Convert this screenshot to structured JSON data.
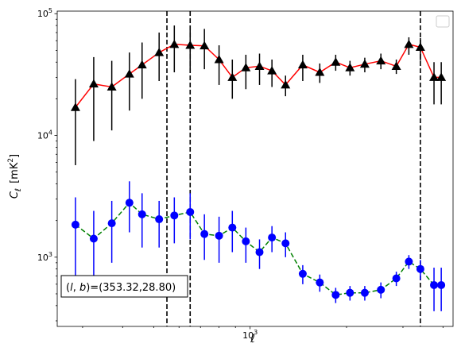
{
  "chart_data": {
    "type": "line",
    "title": "",
    "xlabel": "ℓ",
    "ylabel_main": "C",
    "ylabel_sub": "ℓ",
    "ylabel_unit": "[mK",
    "ylabel_unit_sup": "2",
    "ylabel_unit_close": "]",
    "x_scale": "log",
    "y_scale": "log",
    "xlim": [
      250,
      4300
    ],
    "ylim": [
      270,
      105000
    ],
    "x_tick_major": [
      {
        "value": 1000,
        "base": "10",
        "exp": "3"
      }
    ],
    "y_tick_major": [
      {
        "value": 1000,
        "base": "10",
        "exp": "3"
      },
      {
        "value": 10000,
        "base": "10",
        "exp": "4"
      },
      {
        "value": 100000,
        "base": "10",
        "exp": "5"
      }
    ],
    "vlines": [
      550,
      650,
      3400
    ],
    "legend": "top-right",
    "annotation": {
      "prefix": "(",
      "l": "l",
      "comma": ", ",
      "b": "b",
      "suffix": ")=(353.32,28.80)"
    },
    "x": [
      285,
      325,
      370,
      420,
      460,
      520,
      580,
      650,
      720,
      800,
      880,
      970,
      1070,
      1170,
      1290,
      1460,
      1650,
      1850,
      2050,
      2280,
      2560,
      2860,
      3130,
      3400,
      3750,
      3950
    ],
    "series": [
      {
        "color": "#ff0000",
        "marker": "triangle",
        "marker_color": "#000000",
        "error_color": "#000000",
        "values": [
          17000,
          26500,
          25000,
          32000,
          38000,
          48000,
          56000,
          55000,
          54500,
          42000,
          30000,
          36000,
          37000,
          34000,
          26000,
          38000,
          33000,
          40000,
          36000,
          38500,
          41000,
          37000,
          56000,
          53000,
          30000,
          30000
        ],
        "err_low": [
          11300,
          17500,
          14000,
          16000,
          18000,
          20000,
          23000,
          21500,
          19500,
          16000,
          10000,
          12000,
          11000,
          9000,
          5000,
          10000,
          6000,
          6000,
          5000,
          5500,
          6000,
          5000,
          10000,
          12000,
          12000,
          12000
        ],
        "err_high": [
          12000,
          17500,
          16000,
          16000,
          20000,
          22000,
          24000,
          22000,
          20500,
          13000,
          12000,
          10000,
          10000,
          8000,
          5000,
          8000,
          6000,
          6000,
          5000,
          5000,
          6000,
          5000,
          8000,
          10000,
          10000,
          10000
        ]
      },
      {
        "color": "#008000",
        "marker": "circle",
        "marker_color": "#0000ff",
        "error_color": "#0000ff",
        "values": [
          1850,
          1420,
          1900,
          2800,
          2250,
          2050,
          2200,
          2350,
          1550,
          1500,
          1750,
          1350,
          1100,
          1450,
          1300,
          730,
          620,
          490,
          510,
          510,
          540,
          670,
          920,
          800,
          590,
          590
        ],
        "err_low": [
          1230,
          880,
          1000,
          1200,
          1050,
          850,
          900,
          950,
          600,
          600,
          650,
          450,
          300,
          350,
          300,
          130,
          100,
          70,
          70,
          70,
          80,
          90,
          120,
          150,
          230,
          230
        ],
        "err_high": [
          1250,
          980,
          1000,
          1400,
          1100,
          850,
          900,
          1000,
          700,
          650,
          650,
          400,
          300,
          350,
          300,
          130,
          100,
          70,
          70,
          70,
          80,
          90,
          120,
          150,
          230,
          230
        ]
      }
    ]
  }
}
